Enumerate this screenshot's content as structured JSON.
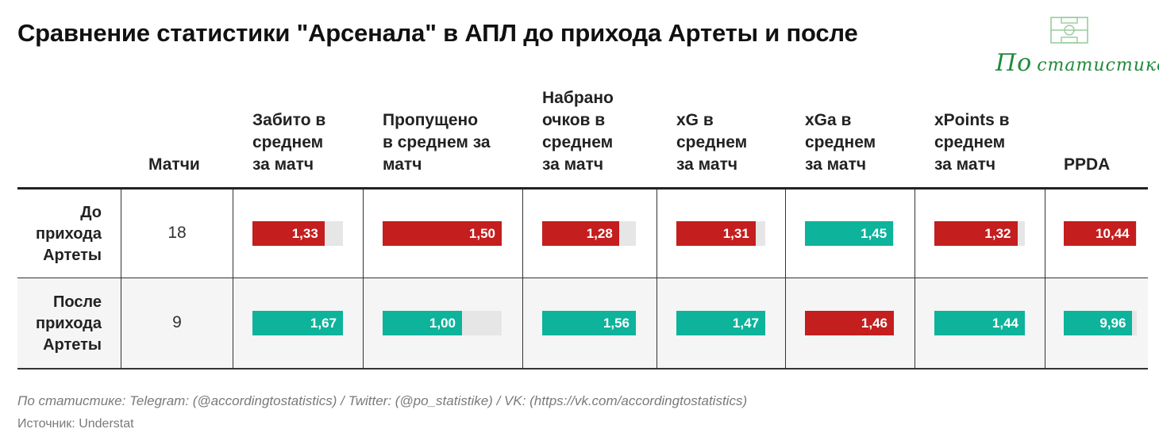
{
  "title": "Сравнение статистики \"Арсенала\" в АПЛ до прихода Артеты и после",
  "logo": {
    "text_big": "По",
    "text_small": "статистике",
    "icon": "football-pitch-icon"
  },
  "colors": {
    "worse": "#c41e1e",
    "better": "#0db39a",
    "track": "#e6e6e6"
  },
  "columns": {
    "matches": [
      "Матчи"
    ],
    "metrics": [
      [
        "Забито в",
        "среднем",
        "за матч"
      ],
      [
        "Пропущено",
        "в среднем за",
        "матч"
      ],
      [
        "Набрано",
        "очков в",
        "среднем",
        "за матч"
      ],
      [
        "xG в",
        "среднем",
        "за матч"
      ],
      [
        "xGa в",
        "среднем",
        "за матч"
      ],
      [
        "xPoints в",
        "среднем",
        "за матч"
      ],
      [
        "PPDA"
      ]
    ]
  },
  "rows": [
    {
      "label": [
        "До",
        "прихода",
        "Артеты"
      ],
      "matches": "18"
    },
    {
      "label": [
        "После",
        "прихода",
        "Артеты"
      ],
      "matches": "9"
    }
  ],
  "chart_data": {
    "type": "table",
    "categories": [
      "Забито в среднем за матч",
      "Пропущено в среднем за матч",
      "Набрано очков в среднем за матч",
      "xG в среднем за матч",
      "xGa в среднем за матч",
      "xPoints в среднем за матч",
      "PPDA"
    ],
    "series": [
      {
        "name": "До прихода Артеты",
        "matches": 18,
        "values": [
          1.33,
          1.5,
          1.28,
          1.31,
          1.45,
          1.32,
          10.44
        ],
        "labels": [
          "1,33",
          "1,50",
          "1,28",
          "1,31",
          "1,45",
          "1,32",
          "10,44"
        ],
        "status": [
          "worse",
          "worse",
          "worse",
          "worse",
          "better",
          "worse",
          "worse"
        ]
      },
      {
        "name": "После прихода Артеты",
        "matches": 9,
        "values": [
          1.67,
          1.0,
          1.56,
          1.47,
          1.46,
          1.44,
          9.96
        ],
        "labels": [
          "1,67",
          "1,00",
          "1,56",
          "1,47",
          "1,46",
          "1,44",
          "9,96"
        ],
        "status": [
          "better",
          "better",
          "better",
          "better",
          "worse",
          "better",
          "better"
        ]
      }
    ],
    "column_max": [
      1.67,
      1.5,
      1.56,
      1.47,
      1.46,
      1.44,
      10.6
    ]
  },
  "footer": {
    "credits": "По статистике: Telegram: (@accordingtostatistics) / Twitter: (@po_statistike) / VK: (https://vk.com/accordingtostatistics)",
    "source": "Источник: Understat"
  }
}
